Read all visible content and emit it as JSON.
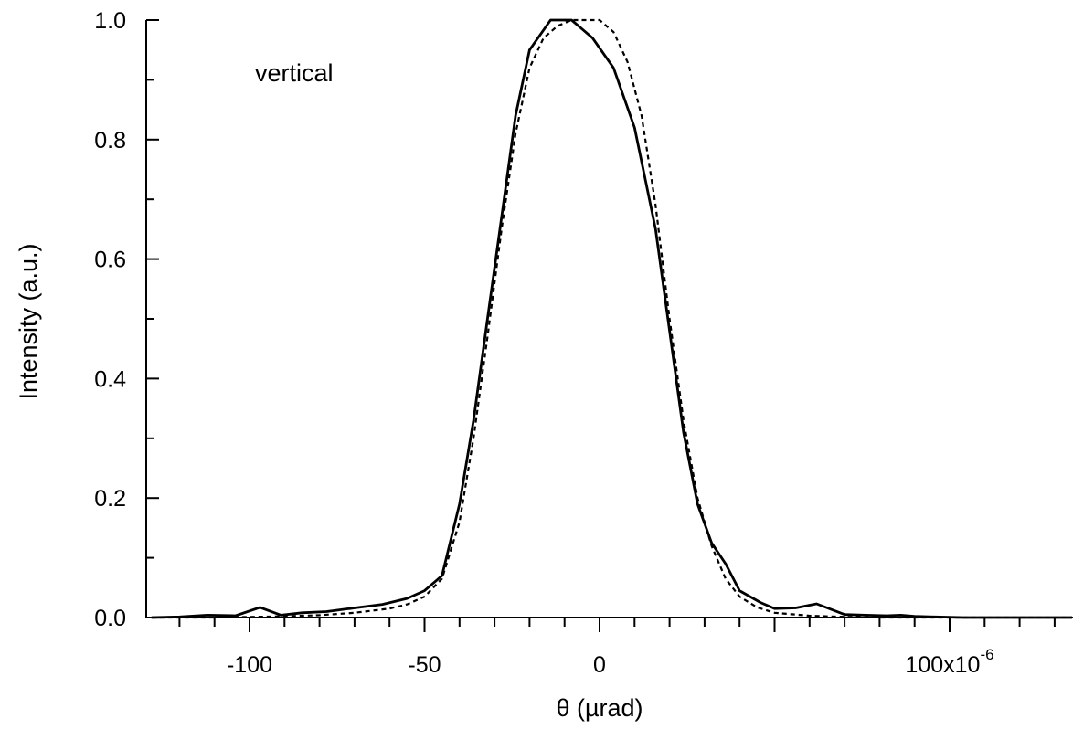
{
  "chart_data": {
    "type": "line",
    "xlabel": "θ (µrad)",
    "ylabel": "Intensity  (a.u.)",
    "annotation": "vertical",
    "xlim": [
      -130,
      135
    ],
    "ylim": [
      0,
      1.0
    ],
    "grid": false,
    "legend": "none",
    "x_ticks": [
      {
        "value": -100,
        "label": "-100"
      },
      {
        "value": -50,
        "label": "-50"
      },
      {
        "value": 0,
        "label": "0"
      },
      {
        "value": 100,
        "label": "100x10",
        "exponent": "-6"
      }
    ],
    "y_ticks": [
      {
        "value": 0.0,
        "label": "0.0"
      },
      {
        "value": 0.2,
        "label": "0.2"
      },
      {
        "value": 0.4,
        "label": "0.4"
      },
      {
        "value": 0.6,
        "label": "0.6"
      },
      {
        "value": 0.8,
        "label": "0.8"
      },
      {
        "value": 1.0,
        "label": "1.0"
      }
    ],
    "series": [
      {
        "style": "solid",
        "color": "#000000",
        "x": [
          -128,
          -120,
          -112,
          -104,
          -97,
          -91,
          -85,
          -78,
          -70,
          -62,
          -55,
          -50,
          -45,
          -40,
          -36,
          -32,
          -28,
          -24,
          -20,
          -14,
          -8,
          -2,
          4,
          10,
          16,
          20,
          24,
          28,
          32,
          36,
          40,
          46,
          50,
          56,
          62,
          70,
          76,
          82,
          86,
          90,
          96,
          104,
          112,
          118,
          126,
          135
        ],
        "y": [
          0.0,
          0.001,
          0.004,
          0.003,
          0.017,
          0.004,
          0.008,
          0.01,
          0.016,
          0.022,
          0.032,
          0.045,
          0.07,
          0.19,
          0.33,
          0.5,
          0.67,
          0.84,
          0.95,
          1.0,
          1.0,
          0.97,
          0.92,
          0.82,
          0.65,
          0.48,
          0.31,
          0.19,
          0.125,
          0.09,
          0.045,
          0.025,
          0.015,
          0.016,
          0.023,
          0.005,
          0.004,
          0.003,
          0.004,
          0.002,
          0.001,
          0.0,
          0.0,
          0.0,
          0.0,
          0.0
        ]
      },
      {
        "style": "dashed",
        "color": "#000000",
        "x": [
          -128,
          -120,
          -110,
          -100,
          -90,
          -80,
          -70,
          -60,
          -55,
          -50,
          -45,
          -40,
          -36,
          -32,
          -28,
          -24,
          -20,
          -16,
          -12,
          -8,
          -4,
          0,
          4,
          8,
          12,
          16,
          20,
          24,
          28,
          32,
          36,
          40,
          45,
          50,
          60,
          70,
          80,
          90,
          100,
          110,
          120,
          135
        ],
        "y": [
          0.0,
          0.0,
          0.0,
          0.001,
          0.002,
          0.004,
          0.008,
          0.015,
          0.022,
          0.035,
          0.065,
          0.16,
          0.3,
          0.47,
          0.65,
          0.81,
          0.92,
          0.97,
          0.99,
          1.0,
          1.0,
          1.0,
          0.98,
          0.93,
          0.84,
          0.69,
          0.5,
          0.33,
          0.2,
          0.12,
          0.065,
          0.035,
          0.017,
          0.008,
          0.003,
          0.001,
          0.0,
          0.0,
          0.0,
          0.0,
          0.0,
          0.0
        ]
      }
    ]
  }
}
